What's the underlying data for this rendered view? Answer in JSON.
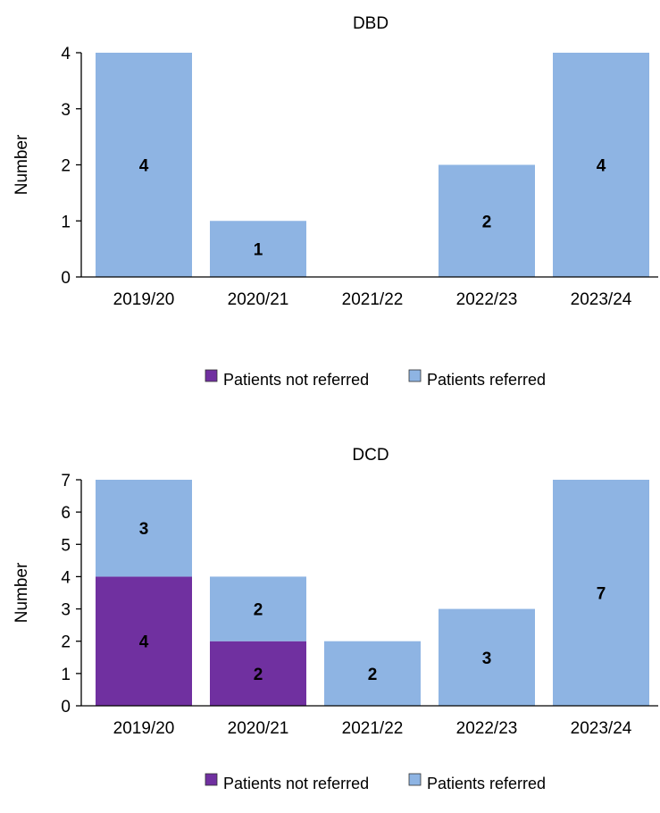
{
  "chart_data": [
    {
      "type": "bar",
      "stacked": true,
      "title": "DBD",
      "xlabel": "",
      "ylabel": "Number",
      "ylim": [
        0,
        4
      ],
      "yticks": [
        0,
        1,
        2,
        3,
        4
      ],
      "categories": [
        "2019/20",
        "2020/21",
        "2021/22",
        "2022/23",
        "2023/24"
      ],
      "series": [
        {
          "name": "Patients not referred",
          "values": [
            0,
            0,
            0,
            0,
            0
          ]
        },
        {
          "name": "Patients referred",
          "values": [
            4,
            1,
            0,
            2,
            4
          ]
        }
      ],
      "grid": false,
      "legend": "bottom"
    },
    {
      "type": "bar",
      "stacked": true,
      "title": "DCD",
      "xlabel": "",
      "ylabel": "Number",
      "ylim": [
        0,
        7
      ],
      "yticks": [
        0,
        1,
        2,
        3,
        4,
        5,
        6,
        7
      ],
      "categories": [
        "2019/20",
        "2020/21",
        "2021/22",
        "2022/23",
        "2023/24"
      ],
      "series": [
        {
          "name": "Patients not referred",
          "values": [
            4,
            2,
            0,
            0,
            0
          ]
        },
        {
          "name": "Patients referred",
          "values": [
            3,
            2,
            2,
            3,
            7
          ]
        }
      ],
      "grid": false,
      "legend": "bottom"
    }
  ],
  "colors": {
    "not_referred": "#7030A0",
    "referred": "#8EB4E3",
    "axis": "#000000"
  }
}
